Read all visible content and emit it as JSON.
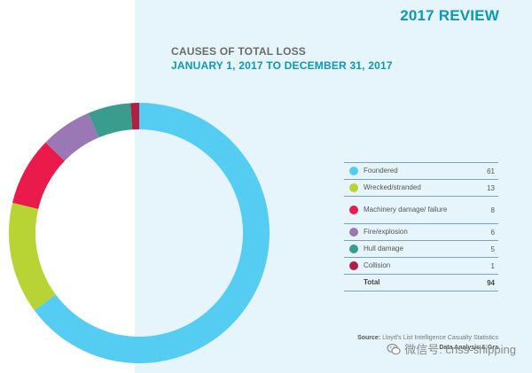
{
  "header": {
    "review_title": "2017 REVIEW"
  },
  "chart_data": {
    "type": "pie",
    "title": "CAUSES OF TOTAL LOSS",
    "subtitle": "JANUARY 1, 2017 TO DECEMBER 31, 2017",
    "categories": [
      "Foundered",
      "Wrecked/stranded",
      "Machinery damage/ failure",
      "Fire/explosion",
      "Hull damage",
      "Collision"
    ],
    "values": [
      61,
      13,
      8,
      6,
      5,
      1
    ],
    "colors": [
      "#55cdf3",
      "#b8d434",
      "#ea1a4a",
      "#9a78b6",
      "#3a9c8c",
      "#b21f45"
    ],
    "legend_position": "right",
    "total_label": "Total",
    "total_value": "94"
  },
  "source": {
    "label": "Source:",
    "text": "Lloyd's List Intelligence Casualty Statistics",
    "line2": "Data Analysis & Gra"
  },
  "watermark": {
    "text": "微信号: cnss-shipping",
    "icon": "wechat-icon"
  }
}
